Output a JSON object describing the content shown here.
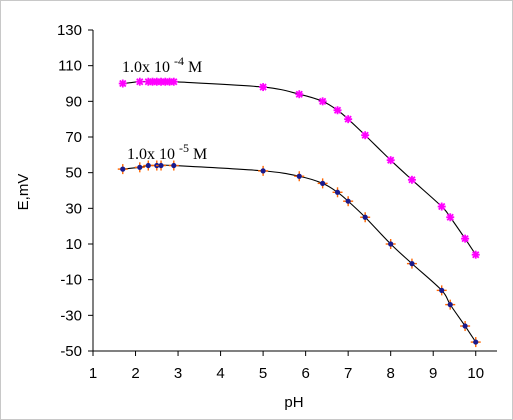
{
  "chart_data": {
    "type": "scatter",
    "xlabel": "pH",
    "ylabel": "E,mV",
    "xlim": [
      1,
      10.5
    ],
    "ylim": [
      -50,
      130
    ],
    "x_ticks": [
      1,
      2,
      3,
      4,
      5,
      6,
      7,
      8,
      9,
      10
    ],
    "y_ticks": [
      -50,
      -30,
      -10,
      10,
      30,
      50,
      70,
      90,
      110,
      130
    ],
    "x_tick_labels": [
      "1",
      "2",
      "3",
      "4",
      "5",
      "6",
      "7",
      "8",
      "9",
      "10"
    ],
    "y_tick_labels": [
      "-50",
      "-30",
      "-10",
      "10",
      "30",
      "50",
      "70",
      "90",
      "110",
      "130"
    ],
    "grid": false,
    "annotations": [
      {
        "base": "1.0x 10",
        "exponent": "-4",
        "unit": "M",
        "series_index": 0
      },
      {
        "base": "1.0x 10",
        "exponent": "-5",
        "unit": "M",
        "series_index": 1
      }
    ],
    "series": [
      {
        "color": "#ff00ff",
        "marker": "asterisk",
        "x": [
          1.7,
          2.1,
          2.3,
          2.4,
          2.5,
          2.6,
          2.7,
          2.8,
          2.9,
          5.0,
          5.85,
          6.4,
          6.75,
          7.0,
          7.4,
          8.0,
          8.5,
          9.2,
          9.4,
          9.75,
          10.0
        ],
        "y": [
          100,
          101,
          101,
          101,
          101,
          101,
          101,
          101,
          101,
          98,
          94,
          90,
          85,
          80,
          71,
          57,
          46,
          31,
          25,
          13,
          4
        ]
      },
      {
        "color": "#1a1a8c",
        "marker": "dot-cross",
        "marker_cross_color": "#ff6600",
        "x": [
          1.7,
          2.1,
          2.3,
          2.5,
          2.6,
          2.9,
          5.0,
          5.85,
          6.4,
          6.75,
          7.0,
          7.4,
          8.0,
          8.5,
          9.2,
          9.4,
          9.75,
          10.0
        ],
        "y": [
          52,
          53,
          54,
          54,
          54,
          54,
          51,
          48,
          44,
          39,
          34,
          25,
          10,
          -1,
          -16,
          -24,
          -36,
          -45
        ]
      }
    ]
  }
}
